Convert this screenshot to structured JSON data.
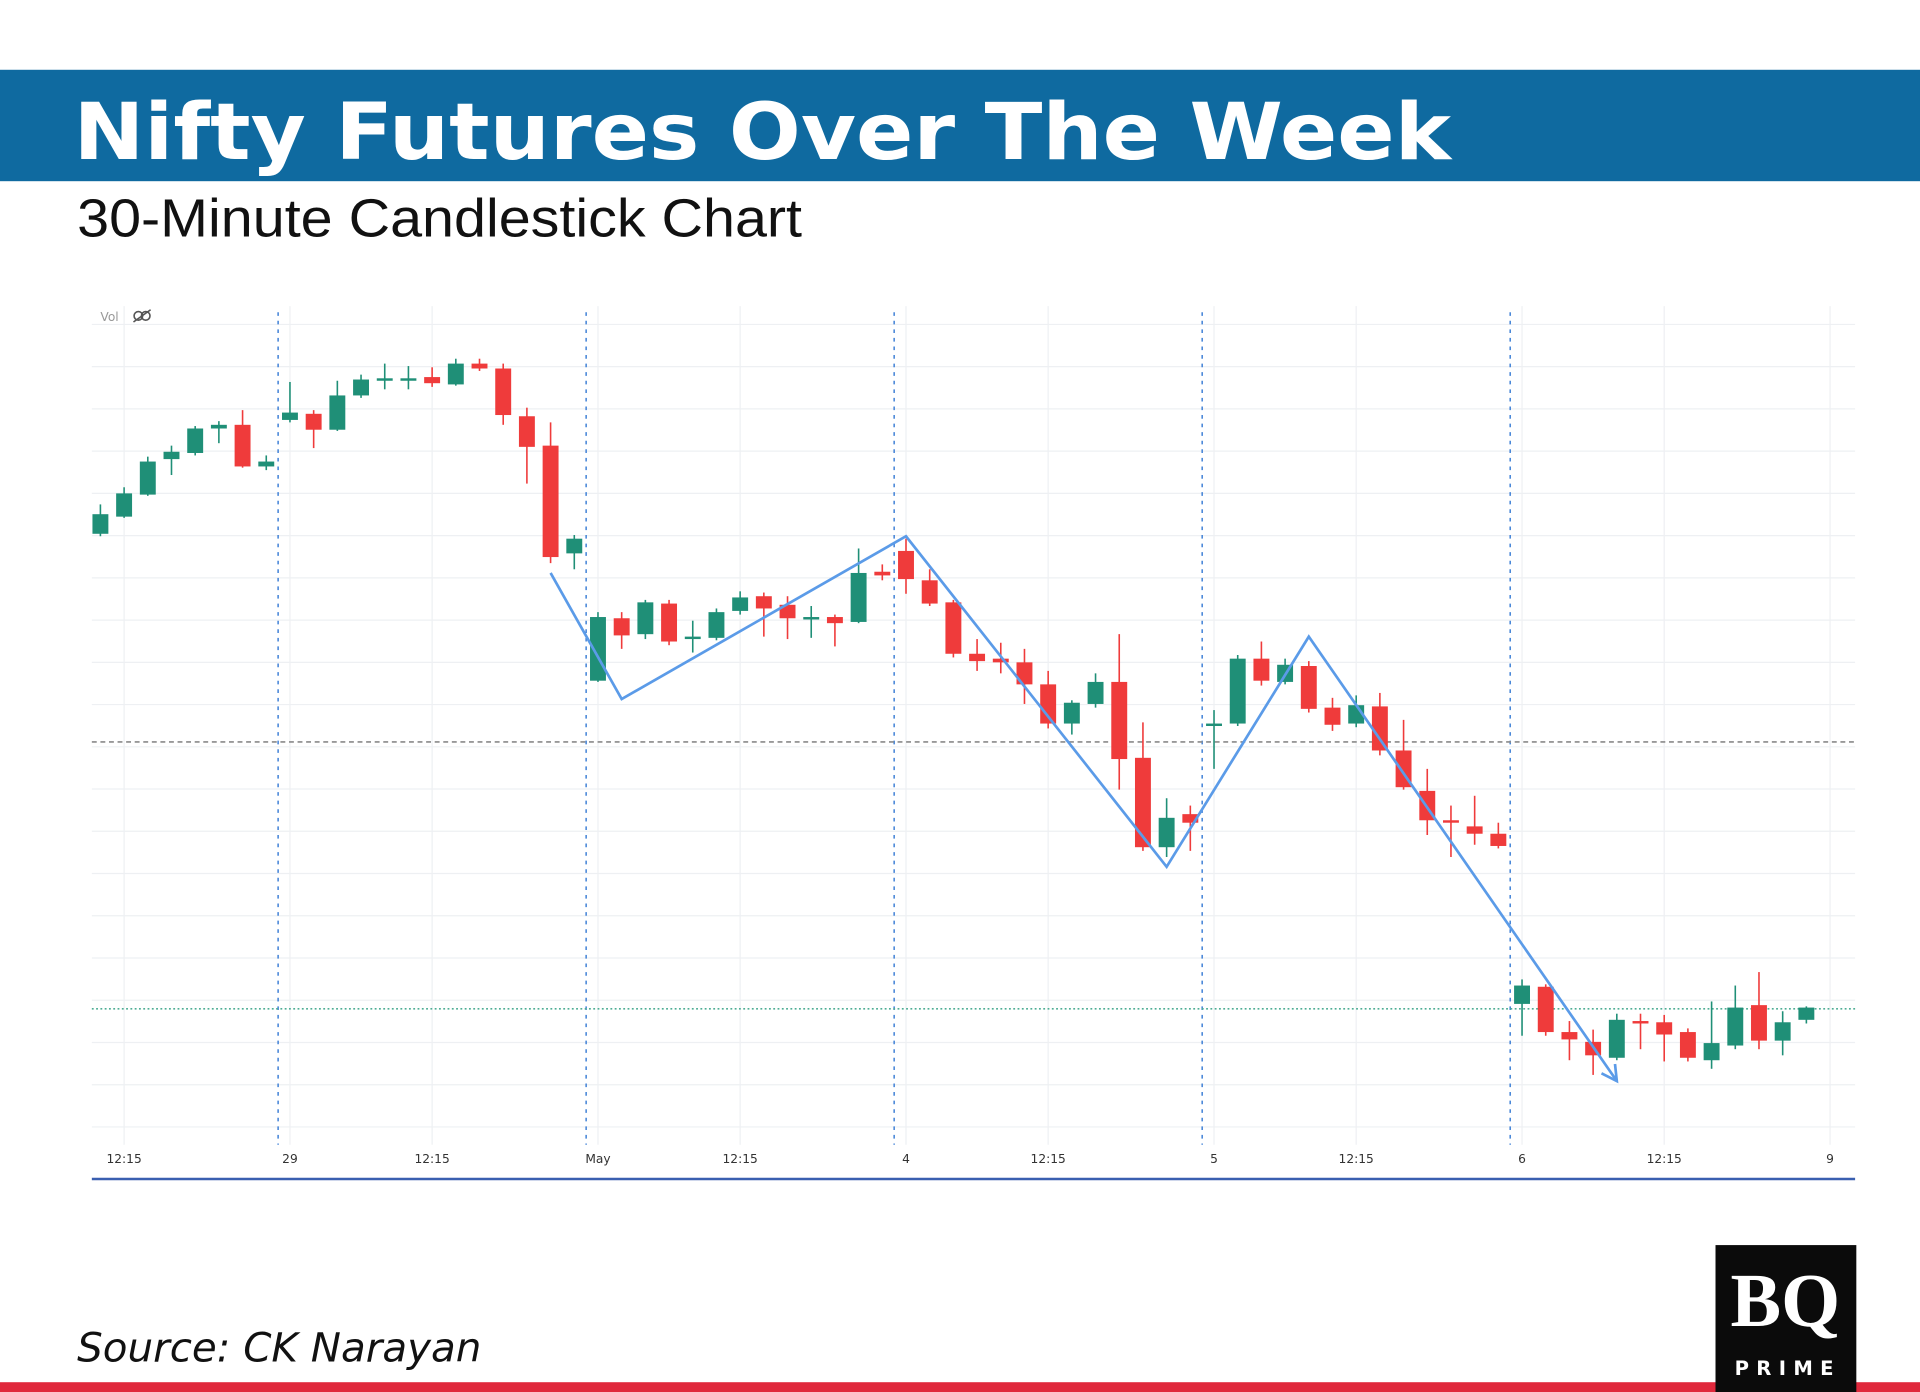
{
  "chart_data": {
    "type": "candlestick",
    "title": "Nifty Futures Over The Week",
    "subtitle": "30-Minute Candlestick Chart",
    "source": "Source: CK Narayan",
    "volume_label": "Vol",
    "logo": {
      "mark": "BQ",
      "name": "PRIME"
    },
    "up_color": "#1f8f77",
    "down_color": "#ef3b3b",
    "ylim": [
      0,
      680
    ],
    "categories": [
      null,
      "12:15",
      null,
      null,
      null,
      null,
      null,
      null,
      "29",
      null,
      null,
      null,
      null,
      null,
      "12:15",
      null,
      null,
      null,
      null,
      null,
      null,
      "May",
      null,
      null,
      null,
      null,
      null,
      "12:15",
      null,
      null,
      null,
      null,
      null,
      null,
      "4",
      null,
      null,
      null,
      null,
      null,
      "12:15",
      null,
      null,
      null,
      null,
      null,
      null,
      "5",
      null,
      null,
      null,
      null,
      null,
      "12:15",
      null,
      null,
      null,
      null,
      null,
      null,
      "6",
      null,
      null,
      null,
      null,
      null,
      "12:15",
      null,
      null,
      null,
      null,
      null,
      null,
      "9"
    ],
    "open": [
      499,
      513,
      531,
      560,
      565,
      585,
      588,
      554,
      592,
      597,
      584,
      612,
      625,
      625,
      627,
      621,
      638,
      634,
      595,
      571,
      483,
      379,
      430,
      417,
      442,
      413,
      414,
      436,
      448,
      441,
      429,
      431,
      427,
      468,
      485,
      461,
      443,
      401,
      397,
      394,
      376,
      344,
      360,
      378,
      316,
      243,
      270,
      342,
      344,
      397,
      378,
      391,
      357,
      344,
      358,
      322,
      289,
      265,
      260,
      254,
      115,
      129,
      92,
      84,
      71,
      101,
      100,
      92,
      69,
      81,
      114,
      85,
      102,
      null
    ],
    "high": [
      523,
      537,
      562,
      571,
      587,
      591,
      600,
      563,
      623,
      600,
      624,
      629,
      638,
      636,
      635,
      642,
      642,
      638,
      602,
      590,
      498,
      435,
      435,
      445,
      445,
      428,
      438,
      452,
      451,
      448,
      440,
      433,
      487,
      474,
      495,
      470,
      445,
      413,
      410,
      405,
      387,
      363,
      385,
      417,
      345,
      283,
      277,
      355,
      400,
      411,
      397,
      395,
      365,
      367,
      369,
      347,
      307,
      277,
      285,
      263,
      135,
      131,
      101,
      94,
      107,
      107,
      106,
      95,
      117,
      130,
      141,
      109,
      113,
      null
    ],
    "low": [
      497,
      512,
      530,
      547,
      563,
      573,
      553,
      551,
      590,
      569,
      583,
      610,
      617,
      617,
      619,
      620,
      632,
      588,
      540,
      475,
      470,
      378,
      405,
      413,
      408,
      402,
      412,
      433,
      415,
      413,
      414,
      407,
      426,
      461,
      450,
      440,
      398,
      387,
      385,
      360,
      340,
      335,
      357,
      290,
      240,
      235,
      240,
      307,
      342,
      375,
      376,
      353,
      338,
      341,
      318,
      290,
      253,
      235,
      245,
      242,
      89,
      89,
      69,
      57,
      69,
      78,
      68,
      68,
      62,
      78,
      78,
      73,
      99,
      null
    ],
    "close": [
      515,
      532,
      558,
      566,
      585,
      588,
      554,
      558,
      598,
      584,
      612,
      625,
      626,
      626,
      622,
      638,
      634,
      596,
      570,
      480,
      495,
      431,
      416,
      443,
      411,
      415,
      435,
      447,
      438,
      430,
      431,
      426,
      467,
      465,
      462,
      442,
      401,
      395,
      394,
      376,
      344,
      361,
      378,
      315,
      243,
      267,
      263,
      344,
      397,
      379,
      392,
      356,
      343,
      359,
      322,
      292,
      265,
      263,
      254,
      244,
      130,
      92,
      86,
      73,
      102,
      99,
      90,
      71,
      83,
      112,
      85,
      100,
      112,
      null
    ],
    "session_breaks": [
      8,
      21,
      34,
      47,
      60
    ],
    "price_lines": [
      {
        "value": 329,
        "color": "#8a8a8a"
      },
      {
        "value": 111,
        "color": "#4fae95"
      }
    ],
    "trendline": {
      "color": "#5b9be8",
      "x": [
        19,
        22,
        34,
        45,
        51,
        64
      ],
      "values": [
        467,
        364,
        497,
        227,
        415,
        52
      ]
    }
  }
}
